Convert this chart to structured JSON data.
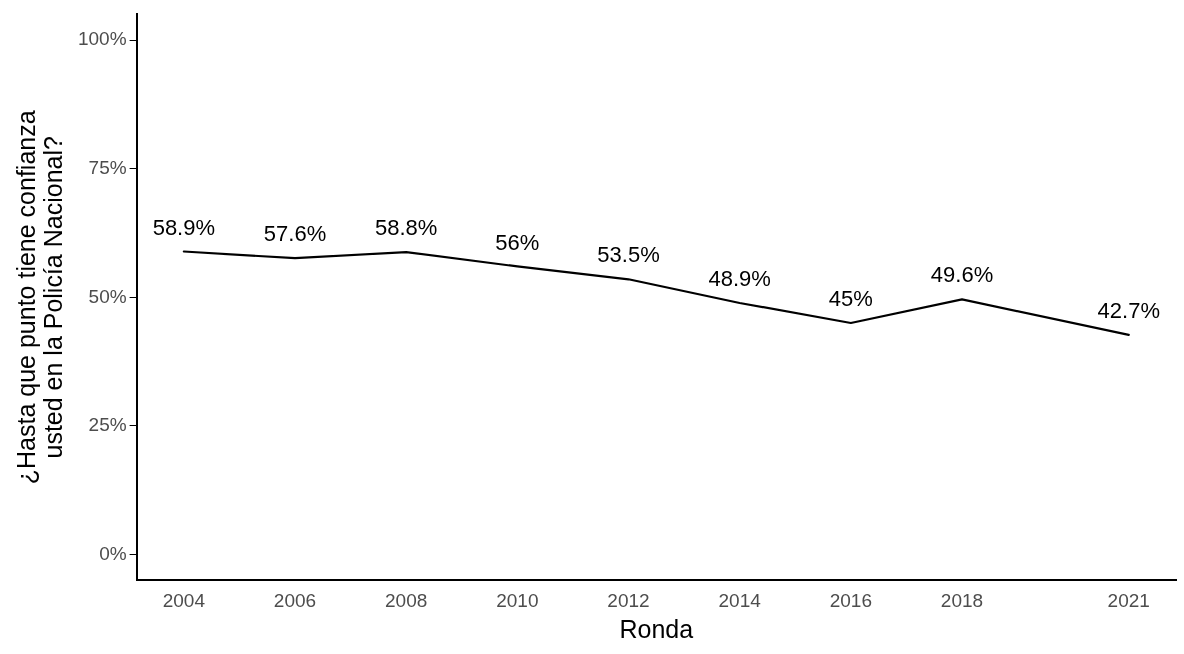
{
  "chart_data": {
    "type": "line",
    "xlabel": "Ronda",
    "ylabel": "¿Hasta que punto tiene confianza usted en la Policía Nacional?",
    "x": [
      2004,
      2006,
      2008,
      2010,
      2012,
      2014,
      2016,
      2018,
      2021
    ],
    "series": [
      {
        "color": "#000000",
        "values": [
          58.9,
          57.6,
          58.8,
          56,
          53.5,
          48.9,
          45,
          49.6,
          42.7
        ],
        "value_labels": [
          "58.9%",
          "57.6%",
          "58.8%",
          "56%",
          "53.5%",
          "48.9%",
          "45%",
          "49.6%",
          "42.7%"
        ]
      }
    ],
    "xlim": [
      2003.15,
      2021.85
    ],
    "xticks": [
      2004,
      2006,
      2008,
      2010,
      2012,
      2014,
      2016,
      2018,
      2021
    ],
    "ylim": [
      -5,
      105
    ],
    "yticks": [
      {
        "value": 0,
        "label": "0%"
      },
      {
        "value": 25,
        "label": "25%"
      },
      {
        "value": 50,
        "label": "50%"
      },
      {
        "value": 75,
        "label": "75%"
      },
      {
        "value": 100,
        "label": "100%"
      }
    ],
    "grid": false,
    "legend": false,
    "marker": "none",
    "line_style": "solid"
  }
}
